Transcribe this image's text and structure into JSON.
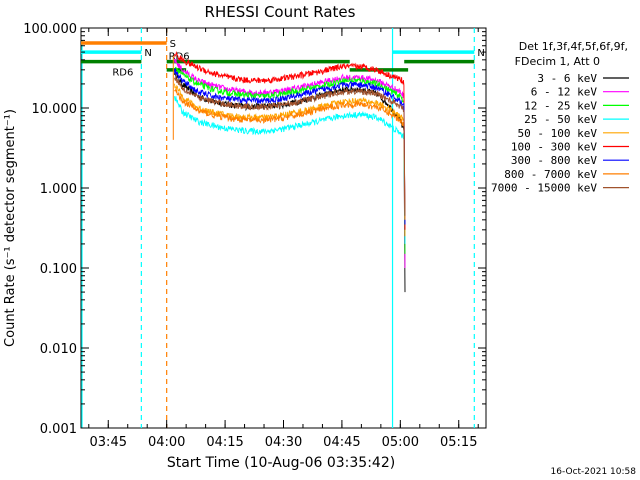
{
  "chart_data": {
    "type": "line",
    "title": "RHESSI Count Rates",
    "xlabel": "Start Time (10-Aug-06 03:35:42)",
    "ylabel": "Count Rate (s⁻¹ detector segment⁻¹)",
    "yscale": "log",
    "ylim": [
      0.001,
      100
    ],
    "xlim_minutes": [
      -22,
      82
    ],
    "x_ticks": [
      {
        "label": "03:45",
        "minutes": -15
      },
      {
        "label": "04:00",
        "minutes": 0
      },
      {
        "label": "04:15",
        "minutes": 15
      },
      {
        "label": "04:30",
        "minutes": 30
      },
      {
        "label": "04:45",
        "minutes": 45
      },
      {
        "label": "05:00",
        "minutes": 60
      },
      {
        "label": "05:15",
        "minutes": 75
      }
    ],
    "y_ticks": [
      "0.001",
      "0.010",
      "0.100",
      "1.000",
      "10.000",
      "100.000"
    ],
    "legend": {
      "header": [
        "Det 1f,3f,4f,5f,6f,9f,",
        "FDecim 1, Att 0"
      ],
      "placement": "right"
    },
    "series": [
      {
        "name": "3 - 6 keV",
        "color": "#000000",
        "points": [
          [
            2,
            28
          ],
          [
            4,
            20
          ],
          [
            8,
            14
          ],
          [
            12,
            12
          ],
          [
            16,
            11
          ],
          [
            20,
            10.5
          ],
          [
            25,
            10.5
          ],
          [
            30,
            11
          ],
          [
            35,
            12.5
          ],
          [
            40,
            14.5
          ],
          [
            45,
            17
          ],
          [
            50,
            17
          ],
          [
            54,
            15
          ],
          [
            57,
            11
          ],
          [
            60,
            7
          ],
          [
            61,
            5
          ]
        ]
      },
      {
        "name": "6 - 12 keV",
        "color": "#ff00ff",
        "points": [
          [
            2,
            40
          ],
          [
            4,
            30
          ],
          [
            8,
            22
          ],
          [
            12,
            19
          ],
          [
            16,
            17
          ],
          [
            20,
            16
          ],
          [
            25,
            15.5
          ],
          [
            30,
            16.5
          ],
          [
            35,
            18.5
          ],
          [
            40,
            21
          ],
          [
            45,
            24
          ],
          [
            50,
            24
          ],
          [
            54,
            22
          ],
          [
            57,
            19
          ],
          [
            60,
            16
          ],
          [
            61,
            14
          ]
        ]
      },
      {
        "name": "12 - 25 keV",
        "color": "#00ff00",
        "points": [
          [
            2,
            34
          ],
          [
            4,
            26
          ],
          [
            8,
            20
          ],
          [
            12,
            17
          ],
          [
            16,
            15.5
          ],
          [
            20,
            14.5
          ],
          [
            25,
            14
          ],
          [
            30,
            15
          ],
          [
            35,
            17
          ],
          [
            40,
            19
          ],
          [
            45,
            22
          ],
          [
            50,
            22
          ],
          [
            54,
            20
          ],
          [
            57,
            17
          ],
          [
            60,
            14
          ],
          [
            61,
            12
          ]
        ]
      },
      {
        "name": "25 - 50 keV",
        "color": "#00ffff",
        "points": [
          [
            2,
            14
          ],
          [
            4,
            9
          ],
          [
            8,
            6.8
          ],
          [
            12,
            6
          ],
          [
            16,
            5.5
          ],
          [
            20,
            5.2
          ],
          [
            25,
            5.1
          ],
          [
            30,
            5.5
          ],
          [
            35,
            6.2
          ],
          [
            40,
            7
          ],
          [
            45,
            8
          ],
          [
            50,
            8.3
          ],
          [
            54,
            7.6
          ],
          [
            57,
            6.2
          ],
          [
            60,
            4.8
          ],
          [
            61,
            4.2
          ]
        ]
      },
      {
        "name": "50 - 100 keV",
        "color": "#ffa500",
        "points": [
          [
            2,
            20
          ],
          [
            4,
            14
          ],
          [
            8,
            10
          ],
          [
            12,
            8.8
          ],
          [
            16,
            8.1
          ],
          [
            20,
            7.7
          ],
          [
            25,
            7.6
          ],
          [
            30,
            8.2
          ],
          [
            35,
            9.2
          ],
          [
            40,
            10.5
          ],
          [
            45,
            12
          ],
          [
            50,
            12.4
          ],
          [
            54,
            11.5
          ],
          [
            57,
            9.8
          ],
          [
            60,
            7.8
          ],
          [
            61,
            7
          ]
        ]
      },
      {
        "name": "100 - 300 keV",
        "color": "#ff0000",
        "points": [
          [
            2,
            48
          ],
          [
            4,
            40
          ],
          [
            8,
            32
          ],
          [
            12,
            27
          ],
          [
            16,
            24
          ],
          [
            20,
            22.5
          ],
          [
            25,
            22
          ],
          [
            30,
            23.5
          ],
          [
            35,
            26
          ],
          [
            40,
            29
          ],
          [
            45,
            33
          ],
          [
            50,
            33
          ],
          [
            54,
            30
          ],
          [
            57,
            26
          ],
          [
            60,
            23
          ],
          [
            61,
            21
          ]
        ]
      },
      {
        "name": "300 - 800 keV",
        "color": "#0000ff",
        "points": [
          [
            2,
            30
          ],
          [
            4,
            22
          ],
          [
            8,
            16
          ],
          [
            12,
            14
          ],
          [
            16,
            13
          ],
          [
            20,
            12.5
          ],
          [
            25,
            12.3
          ],
          [
            30,
            13.2
          ],
          [
            35,
            15
          ],
          [
            40,
            17
          ],
          [
            45,
            19.5
          ],
          [
            50,
            19.5
          ],
          [
            54,
            18
          ],
          [
            57,
            15
          ],
          [
            60,
            12
          ],
          [
            61,
            10.5
          ]
        ]
      },
      {
        "name": "800 - 7000 keV",
        "color": "#ff7f00",
        "points": [
          [
            2,
            17
          ],
          [
            4,
            12.5
          ],
          [
            8,
            9.3
          ],
          [
            12,
            8.2
          ],
          [
            16,
            7.5
          ],
          [
            20,
            7.1
          ],
          [
            25,
            7
          ],
          [
            30,
            7.5
          ],
          [
            35,
            8.5
          ],
          [
            40,
            9.7
          ],
          [
            45,
            11
          ],
          [
            50,
            11.2
          ],
          [
            54,
            10.3
          ],
          [
            57,
            8.7
          ],
          [
            60,
            7
          ],
          [
            61,
            6.3
          ]
        ]
      },
      {
        "name": "7000 - 15000 keV",
        "color": "#a0522d",
        "points": [
          [
            2,
            25
          ],
          [
            4,
            18
          ],
          [
            8,
            13.5
          ],
          [
            12,
            12
          ],
          [
            16,
            11
          ],
          [
            20,
            10.5
          ],
          [
            25,
            10.3
          ],
          [
            30,
            11
          ],
          [
            35,
            12.4
          ],
          [
            40,
            14
          ],
          [
            45,
            16
          ],
          [
            50,
            16.2
          ],
          [
            54,
            15
          ],
          [
            57,
            12.8
          ],
          [
            60,
            10.5
          ],
          [
            61,
            9.5
          ]
        ]
      }
    ],
    "state_bars": [
      {
        "label": "S",
        "color": "#ff7f00",
        "y": 65,
        "x": [
          -22,
          0
        ]
      },
      {
        "label": "N",
        "color": "#00ffff",
        "y": 50,
        "x": [
          -22,
          -6.5
        ]
      },
      {
        "label": "N",
        "color": "#00ffff",
        "y": 50,
        "x": [
          58,
          79
        ]
      },
      {
        "label": "RD6",
        "color": "#008000",
        "y": 38,
        "x": [
          -22,
          -6.5
        ]
      },
      {
        "label": "RD6",
        "color": "#008000",
        "y": 38,
        "x": [
          0,
          47
        ]
      },
      {
        "label": "",
        "color": "#008000",
        "y": 38,
        "x": [
          61,
          79
        ]
      },
      {
        "label": "",
        "color": "#008000",
        "y": 30,
        "x": [
          0,
          5
        ]
      },
      {
        "label": "",
        "color": "#008000",
        "y": 30,
        "x": [
          47,
          62
        ]
      }
    ],
    "vertical_markers": [
      {
        "minutes": -6.5,
        "color": "#00ffff",
        "style": "dashed"
      },
      {
        "minutes": 0,
        "color": "#ff7f00",
        "style": "dashed"
      },
      {
        "minutes": 58,
        "color": "#00ffff",
        "style": "solid"
      },
      {
        "minutes": 79,
        "color": "#00ffff",
        "style": "dashed"
      }
    ]
  },
  "footer": {
    "timestamp": "16-Oct-2021 10:58"
  }
}
